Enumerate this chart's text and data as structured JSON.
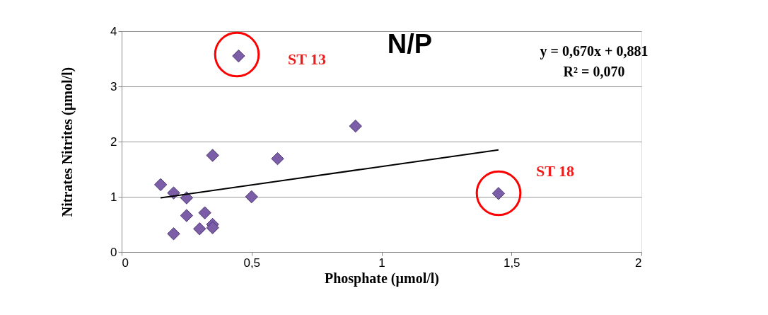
{
  "chart_data": {
    "type": "scatter",
    "title": "N/P",
    "xlabel": "Phosphate (µmol/l)",
    "ylabel": "Nitrates Nitrites (µmol/l)",
    "xlim": [
      0,
      2
    ],
    "ylim": [
      0,
      4
    ],
    "xticks": [
      0,
      {
        "value": 0.5,
        "label": "0,5"
      },
      1,
      {
        "value": 1.5,
        "label": "1,5"
      },
      2
    ],
    "yticks": [
      0,
      1,
      2,
      3,
      4
    ],
    "grid": "y",
    "legend": false,
    "marker": "diamond",
    "series": [
      {
        "color": "#7b5ea7",
        "x": [
          0.15,
          0.2,
          0.25,
          0.35,
          0.6,
          0.5,
          0.25,
          0.32,
          0.35,
          0.35,
          0.3,
          0.2,
          0.45,
          0.9,
          1.45
        ],
        "values": [
          1.22,
          1.07,
          0.98,
          1.75,
          1.69,
          1.0,
          0.66,
          0.71,
          0.5,
          0.44,
          0.42,
          0.33,
          3.55,
          2.28,
          1.06
        ]
      },
      {
        "type": "line",
        "marker": "none",
        "line_style": "solid",
        "color": "#000000",
        "x": [
          0.15,
          1.45
        ],
        "values": [
          0.98,
          1.85
        ]
      }
    ],
    "annotations": [
      "ST 13",
      "ST 18",
      "y = 0,670x + 0,881",
      "R² = 0,070"
    ]
  }
}
